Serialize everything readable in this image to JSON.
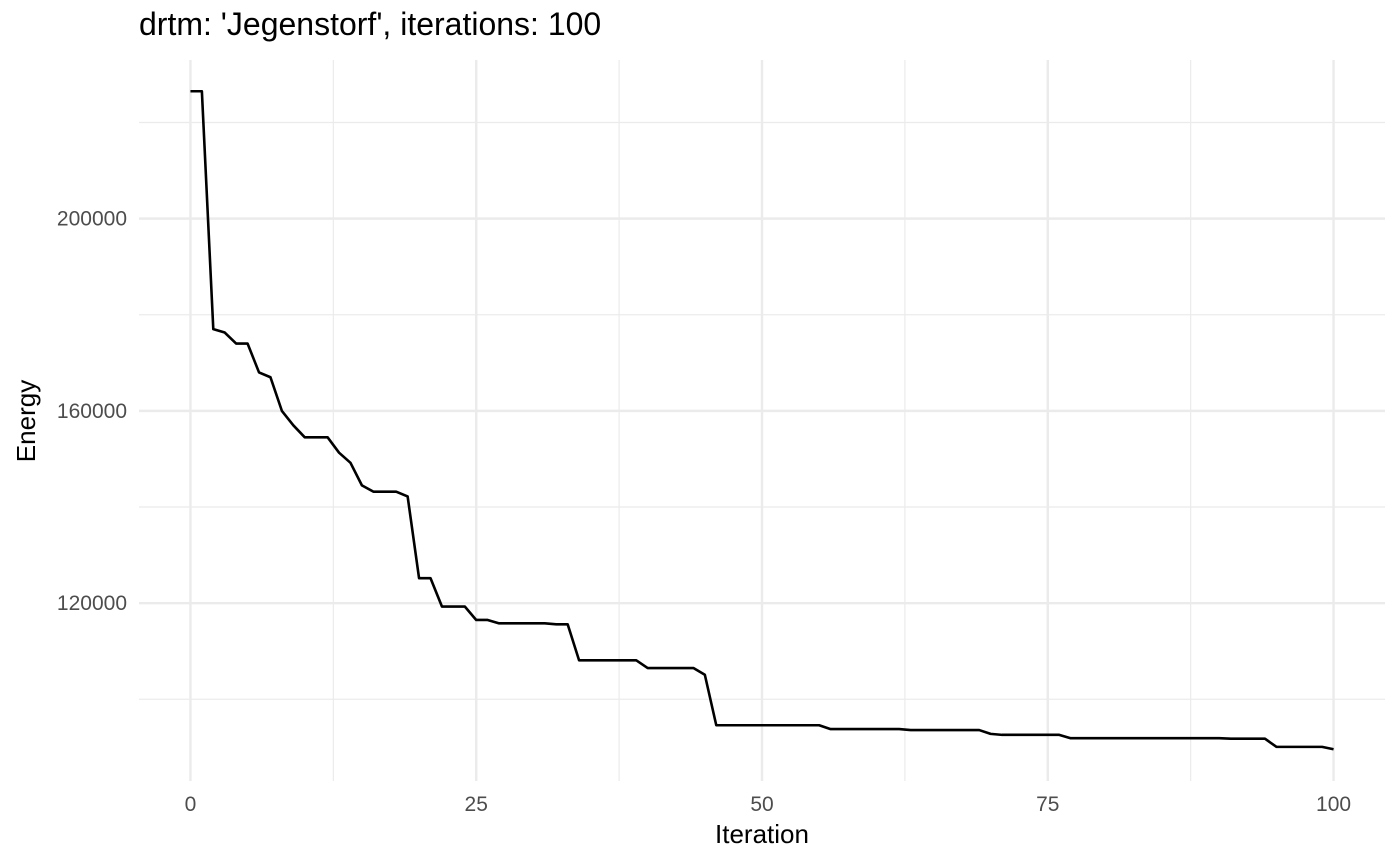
{
  "chart_data": {
    "type": "line",
    "title": "drtm: 'Jegenstorf', iterations: 100",
    "xlabel": "Iteration",
    "ylabel": "Energy",
    "xlim": [
      -4.5,
      104.5
    ],
    "ylim": [
      83000,
      233000
    ],
    "xticks": [
      0,
      25,
      50,
      75,
      100
    ],
    "xtick_labels": [
      "0",
      "25",
      "50",
      "75",
      "100"
    ],
    "yticks": [
      120000,
      160000,
      200000
    ],
    "ytick_labels": [
      "120000",
      "160000",
      "200000"
    ],
    "x_minor": [
      12.5,
      37.5,
      62.5,
      87.5
    ],
    "y_minor": [
      100000,
      140000,
      180000,
      220000
    ],
    "grid": true,
    "line_color": "#000000",
    "series": [
      {
        "x": [
          0,
          1,
          2,
          3,
          4,
          5,
          6,
          7,
          8,
          9,
          10,
          11,
          12,
          13,
          14,
          15,
          16,
          17,
          18,
          19,
          20,
          21,
          22,
          23,
          24,
          25,
          26,
          27,
          28,
          29,
          30,
          31,
          32,
          33,
          34,
          35,
          36,
          37,
          38,
          39,
          40,
          41,
          42,
          43,
          44,
          45,
          46,
          47,
          48,
          49,
          50,
          51,
          52,
          53,
          54,
          55,
          56,
          57,
          58,
          59,
          60,
          61,
          62,
          63,
          64,
          65,
          66,
          67,
          68,
          69,
          70,
          71,
          72,
          73,
          74,
          75,
          76,
          77,
          78,
          79,
          80,
          81,
          82,
          83,
          84,
          85,
          86,
          87,
          88,
          89,
          90,
          91,
          92,
          93,
          94,
          95,
          96,
          97,
          98,
          99,
          100
        ],
        "y": [
          226500,
          226500,
          177000,
          176300,
          174000,
          174000,
          168000,
          167000,
          160000,
          157000,
          154500,
          154500,
          154500,
          151300,
          149200,
          144500,
          143200,
          143200,
          143200,
          142200,
          125200,
          125200,
          119300,
          119300,
          119300,
          116500,
          116500,
          115800,
          115800,
          115800,
          115800,
          115800,
          115600,
          115600,
          108100,
          108100,
          108100,
          108100,
          108100,
          108100,
          106500,
          106500,
          106500,
          106500,
          106500,
          105100,
          94600,
          94600,
          94600,
          94600,
          94600,
          94600,
          94600,
          94600,
          94600,
          94600,
          93800,
          93800,
          93800,
          93800,
          93800,
          93800,
          93800,
          93600,
          93600,
          93600,
          93600,
          93600,
          93600,
          93600,
          92800,
          92600,
          92600,
          92600,
          92600,
          92600,
          92600,
          91900,
          91900,
          91900,
          91900,
          91900,
          91900,
          91900,
          91900,
          91900,
          91900,
          91900,
          91900,
          91900,
          91900,
          91800,
          91800,
          91800,
          91800,
          90100,
          90100,
          90100,
          90100,
          90100,
          89600
        ]
      }
    ]
  }
}
